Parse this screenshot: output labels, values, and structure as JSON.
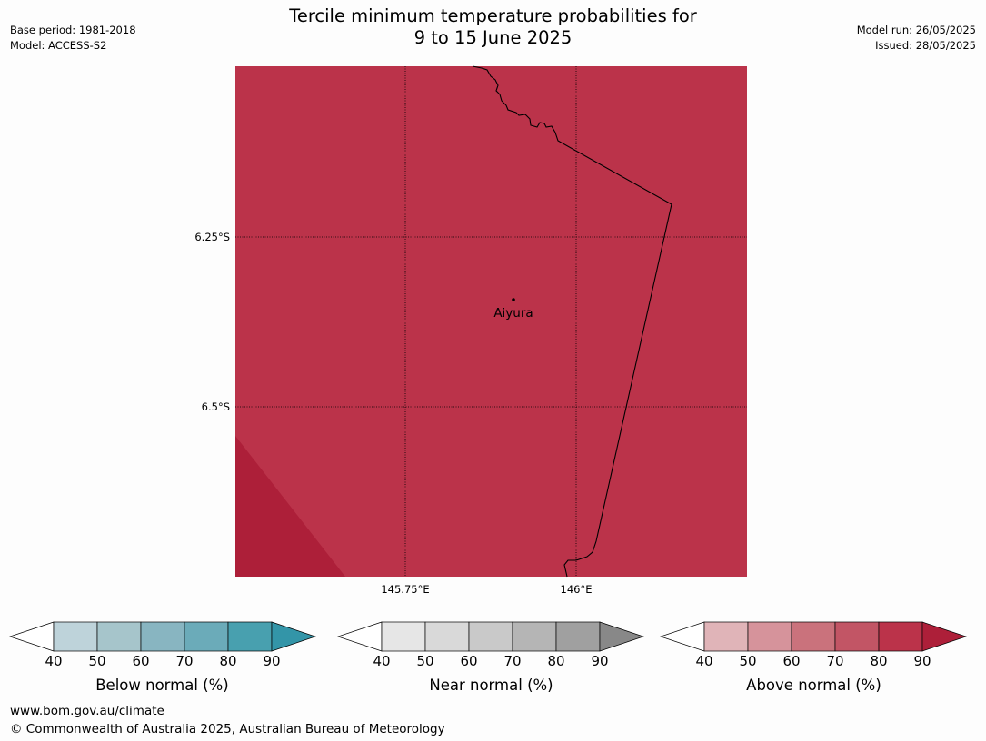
{
  "header": {
    "title_line1": "Tercile minimum temperature probabilities for",
    "title_line2": "9 to 15 June 2025",
    "base_period": "Base period: 1981-2018",
    "model": "Model: ACCESS-S2",
    "model_run": "Model run: 26/05/2025",
    "issued": "Issued: 28/05/2025"
  },
  "map": {
    "fill_color": "#bb334a",
    "corner_fill_color": "#ad1f39",
    "lat_ticks": [
      "6.25°S",
      "6.5°S"
    ],
    "lon_ticks": [
      "145.75°E",
      "146°E"
    ],
    "city": {
      "name": "Aiyura"
    },
    "grid_style": "dotted"
  },
  "colorbars": [
    {
      "label": "Below normal (%)",
      "ticks": [
        "40",
        "50",
        "60",
        "70",
        "80",
        "90"
      ],
      "under_color": "#ffffff",
      "colors": [
        "#bed3da",
        "#a6c5cb",
        "#88b5c1",
        "#6babb9",
        "#48a0af"
      ],
      "over_color": "#3395a8"
    },
    {
      "label": "Near normal (%)",
      "ticks": [
        "40",
        "50",
        "60",
        "70",
        "80",
        "90"
      ],
      "under_color": "#ffffff",
      "colors": [
        "#e6e6e6",
        "#d9d9d9",
        "#c9c9c9",
        "#b5b5b5",
        "#a0a0a0"
      ],
      "over_color": "#888888"
    },
    {
      "label": "Above normal (%)",
      "ticks": [
        "40",
        "50",
        "60",
        "70",
        "80",
        "90"
      ],
      "under_color": "#ffffff",
      "colors": [
        "#e0b4b8",
        "#d6939b",
        "#ca727c",
        "#c25565",
        "#bb334a"
      ],
      "over_color": "#ad1f39"
    }
  ],
  "footer": {
    "website": "www.bom.gov.au/climate",
    "copyright": "© Commonwealth of Australia 2025, Australian Bureau of Meteorology"
  }
}
